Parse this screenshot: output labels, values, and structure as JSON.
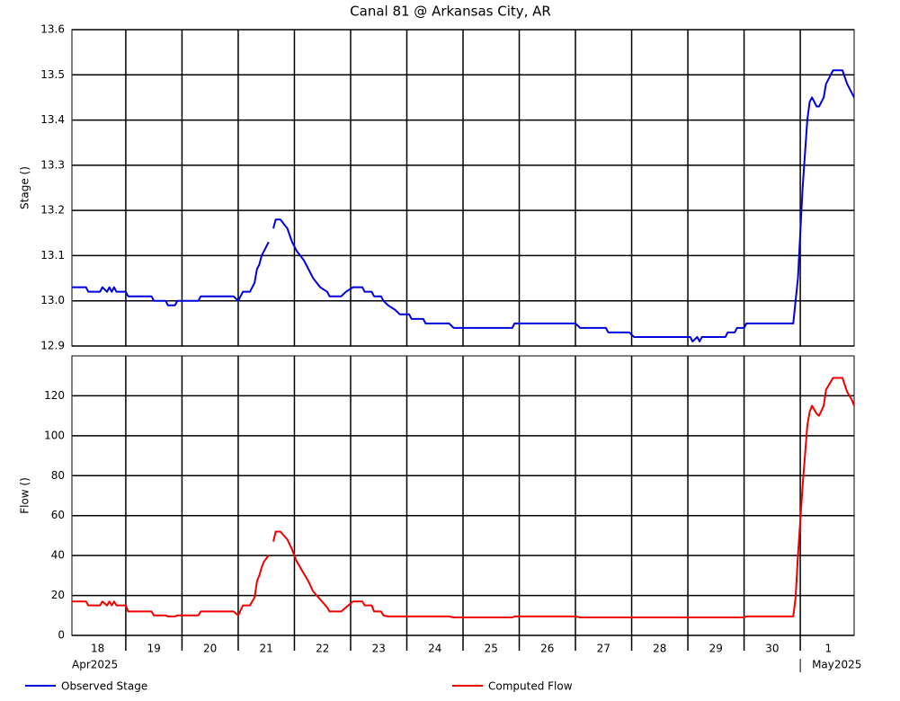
{
  "chart_data": [
    {
      "type": "line",
      "title": "Canal 81 @ Arkansas City, AR",
      "y_label": "Stage ()",
      "xlim": [
        "2025-04-18 01:00",
        "2025-05-01 23:00"
      ],
      "ylim": [
        12.9,
        13.6
      ],
      "yticks": [
        12.9,
        {
          "value": 13,
          "label": "13.0"
        },
        13.1,
        13.2,
        13.3,
        13.4,
        13.5,
        13.6
      ],
      "grid": true,
      "x": [
        "2025-04-18 01:00",
        "2025-04-18 07:00",
        "2025-04-18 08:00",
        "2025-04-18 13:00",
        "2025-04-18 14:00",
        "2025-04-18 16:00",
        "2025-04-18 17:00",
        "2025-04-18 18:00",
        "2025-04-18 19:00",
        "2025-04-18 20:00",
        "2025-04-19 00:00",
        "2025-04-19 01:00",
        "2025-04-19 11:00",
        "2025-04-19 12:00",
        "2025-04-19 17:00",
        "2025-04-19 18:00",
        "2025-04-19 21:00",
        "2025-04-19 22:00",
        "2025-04-20 07:00",
        "2025-04-20 08:00",
        "2025-04-20 22:00",
        "2025-04-21 00:00",
        "2025-04-21 02:00",
        "2025-04-21 05:00",
        "2025-04-21 07:00",
        "2025-04-21 08:00",
        "2025-04-21 09:00",
        "2025-04-21 10:00",
        "2025-04-21 11:00",
        "2025-04-21 13:00",
        "2025-04-21 14:00",
        "2025-04-21 15:00",
        "2025-04-21 16:00",
        "2025-04-21 18:00",
        "2025-04-21 21:00",
        "2025-04-21 23:00",
        "2025-04-22 01:00",
        "2025-04-22 04:00",
        "2025-04-22 06:00",
        "2025-04-22 08:00",
        "2025-04-22 11:00",
        "2025-04-22 14:00",
        "2025-04-22 15:00",
        "2025-04-22 20:00",
        "2025-04-22 22:00",
        "2025-04-23 01:00",
        "2025-04-23 05:00",
        "2025-04-23 06:00",
        "2025-04-23 09:00",
        "2025-04-23 10:00",
        "2025-04-23 13:00",
        "2025-04-23 14:00",
        "2025-04-23 16:00",
        "2025-04-23 19:00",
        "2025-04-23 21:00",
        "2025-04-24 01:00",
        "2025-04-24 02:00",
        "2025-04-24 07:00",
        "2025-04-24 08:00",
        "2025-04-24 18:00",
        "2025-04-24 20:00",
        "2025-04-25 21:00",
        "2025-04-25 22:00",
        "2025-04-27 00:00",
        "2025-04-27 02:00",
        "2025-04-27 13:00",
        "2025-04-27 14:00",
        "2025-04-27 23:00",
        "2025-04-28 01:00",
        "2025-04-29 01:00",
        "2025-04-29 02:00",
        "2025-04-29 04:00",
        "2025-04-29 05:00",
        "2025-04-29 06:00",
        "2025-04-29 16:00",
        "2025-04-29 17:00",
        "2025-04-29 20:00",
        "2025-04-29 21:00",
        "2025-04-30 00:00",
        "2025-04-30 01:00",
        "2025-04-30 21:00",
        "2025-04-30 22:00",
        "2025-04-30 23:00",
        "2025-05-01 01:00",
        "2025-05-01 03:00",
        "2025-05-01 04:00",
        "2025-05-01 05:00",
        "2025-05-01 07:00",
        "2025-05-01 08:00",
        "2025-05-01 10:00",
        "2025-05-01 11:00",
        "2025-05-01 13:00",
        "2025-05-01 14:00",
        "2025-05-01 18:00",
        "2025-05-01 20:00",
        "2025-05-01 22:00",
        "2025-05-01 23:00"
      ],
      "series": [
        {
          "name": "Observed Stage",
          "color": "#0000dd",
          "values": [
            13.03,
            13.03,
            13.02,
            13.02,
            13.03,
            13.02,
            13.03,
            13.02,
            13.03,
            13.02,
            13.02,
            13.01,
            13.01,
            13.0,
            13.0,
            12.99,
            12.99,
            13.0,
            13.0,
            13.01,
            13.01,
            13.0,
            13.02,
            13.02,
            13.04,
            13.07,
            13.08,
            13.1,
            13.11,
            13.13,
            null,
            13.16,
            13.18,
            13.18,
            13.16,
            13.13,
            13.11,
            13.09,
            13.07,
            13.05,
            13.03,
            13.02,
            13.01,
            13.01,
            13.02,
            13.03,
            13.03,
            13.02,
            13.02,
            13.01,
            13.01,
            13.0,
            12.99,
            12.98,
            12.97,
            12.97,
            12.96,
            12.96,
            12.95,
            12.95,
            12.94,
            12.94,
            12.95,
            12.95,
            12.94,
            12.94,
            12.93,
            12.93,
            12.92,
            12.92,
            12.91,
            12.92,
            12.91,
            12.92,
            12.92,
            12.93,
            12.93,
            12.94,
            12.94,
            12.95,
            12.95,
            13.0,
            13.05,
            13.25,
            13.4,
            13.44,
            13.45,
            13.43,
            13.43,
            13.45,
            13.48,
            13.5,
            13.51,
            13.51,
            13.48,
            13.46,
            13.45
          ]
        }
      ]
    },
    {
      "type": "line",
      "y_label": "Flow ()",
      "xlim": [
        "2025-04-18 01:00",
        "2025-05-01 23:00"
      ],
      "ylim": [
        0,
        140
      ],
      "yticks": [
        0,
        20,
        40,
        60,
        80,
        100,
        120
      ],
      "grid": true,
      "xticks": [
        {
          "value": "2025-04-18",
          "label": "18"
        },
        {
          "value": "2025-04-19",
          "label": "19"
        },
        {
          "value": "2025-04-20",
          "label": "20"
        },
        {
          "value": "2025-04-21",
          "label": "21"
        },
        {
          "value": "2025-04-22",
          "label": "22"
        },
        {
          "value": "2025-04-23",
          "label": "23"
        },
        {
          "value": "2025-04-24",
          "label": "24"
        },
        {
          "value": "2025-04-25",
          "label": "25"
        },
        {
          "value": "2025-04-26",
          "label": "26"
        },
        {
          "value": "2025-04-27",
          "label": "27"
        },
        {
          "value": "2025-04-28",
          "label": "28"
        },
        {
          "value": "2025-04-29",
          "label": "29"
        },
        {
          "value": "2025-04-30",
          "label": "30"
        },
        {
          "value": "2025-05-01",
          "label": "1"
        }
      ],
      "month_labels": [
        {
          "value": "2025-04-18",
          "label": "Apr2025"
        },
        {
          "value": "2025-05-01",
          "label": "May2025"
        }
      ],
      "x": [
        "2025-04-18 01:00",
        "2025-04-18 07:00",
        "2025-04-18 08:00",
        "2025-04-18 13:00",
        "2025-04-18 14:00",
        "2025-04-18 16:00",
        "2025-04-18 17:00",
        "2025-04-18 18:00",
        "2025-04-18 19:00",
        "2025-04-18 20:00",
        "2025-04-19 00:00",
        "2025-04-19 01:00",
        "2025-04-19 11:00",
        "2025-04-19 12:00",
        "2025-04-19 17:00",
        "2025-04-19 18:00",
        "2025-04-19 21:00",
        "2025-04-19 22:00",
        "2025-04-20 07:00",
        "2025-04-20 08:00",
        "2025-04-20 22:00",
        "2025-04-21 00:00",
        "2025-04-21 02:00",
        "2025-04-21 05:00",
        "2025-04-21 07:00",
        "2025-04-21 08:00",
        "2025-04-21 09:00",
        "2025-04-21 10:00",
        "2025-04-21 11:00",
        "2025-04-21 13:00",
        "2025-04-21 14:00",
        "2025-04-21 15:00",
        "2025-04-21 16:00",
        "2025-04-21 18:00",
        "2025-04-21 21:00",
        "2025-04-21 23:00",
        "2025-04-22 01:00",
        "2025-04-22 04:00",
        "2025-04-22 06:00",
        "2025-04-22 08:00",
        "2025-04-22 11:00",
        "2025-04-22 14:00",
        "2025-04-22 15:00",
        "2025-04-22 20:00",
        "2025-04-22 22:00",
        "2025-04-23 01:00",
        "2025-04-23 05:00",
        "2025-04-23 06:00",
        "2025-04-23 09:00",
        "2025-04-23 10:00",
        "2025-04-23 13:00",
        "2025-04-23 14:00",
        "2025-04-23 16:00",
        "2025-04-23 19:00",
        "2025-04-23 21:00",
        "2025-04-24 01:00",
        "2025-04-24 02:00",
        "2025-04-24 07:00",
        "2025-04-24 08:00",
        "2025-04-24 18:00",
        "2025-04-24 20:00",
        "2025-04-25 21:00",
        "2025-04-25 22:00",
        "2025-04-27 00:00",
        "2025-04-27 02:00",
        "2025-04-27 13:00",
        "2025-04-27 14:00",
        "2025-04-27 23:00",
        "2025-04-28 01:00",
        "2025-04-29 01:00",
        "2025-04-29 02:00",
        "2025-04-29 04:00",
        "2025-04-29 05:00",
        "2025-04-29 06:00",
        "2025-04-29 16:00",
        "2025-04-29 17:00",
        "2025-04-29 20:00",
        "2025-04-29 21:00",
        "2025-04-30 00:00",
        "2025-04-30 01:00",
        "2025-04-30 21:00",
        "2025-04-30 22:00",
        "2025-04-30 23:00",
        "2025-05-01 01:00",
        "2025-05-01 03:00",
        "2025-05-01 04:00",
        "2025-05-01 05:00",
        "2025-05-01 07:00",
        "2025-05-01 08:00",
        "2025-05-01 10:00",
        "2025-05-01 11:00",
        "2025-05-01 13:00",
        "2025-05-01 14:00",
        "2025-05-01 18:00",
        "2025-05-01 20:00",
        "2025-05-01 22:00",
        "2025-05-01 23:00"
      ],
      "series": [
        {
          "name": "Computed Flow",
          "color": "#ee0000",
          "values": [
            17,
            17,
            15,
            15,
            17,
            15,
            17,
            15,
            17,
            15,
            15,
            12,
            12,
            10,
            10,
            9.5,
            9.5,
            10,
            10,
            12,
            12,
            10,
            15,
            15,
            19,
            27,
            30,
            34,
            37,
            40,
            null,
            47,
            52,
            52,
            48,
            43,
            37,
            31,
            27,
            22,
            18,
            14,
            12,
            12,
            14,
            17,
            17,
            15,
            15,
            12,
            12,
            10,
            9.5,
            9.5,
            9.5,
            9.5,
            9.5,
            9.5,
            9.5,
            9.5,
            9,
            9,
            9.5,
            9.5,
            9,
            9,
            9,
            9,
            9,
            9,
            9,
            9,
            9,
            9,
            9,
            9,
            9,
            9,
            9,
            9.5,
            9.5,
            19,
            40,
            75,
            105,
            112,
            115,
            111,
            110,
            115,
            123,
            127,
            129,
            129,
            122,
            118,
            115
          ]
        }
      ]
    }
  ]
}
